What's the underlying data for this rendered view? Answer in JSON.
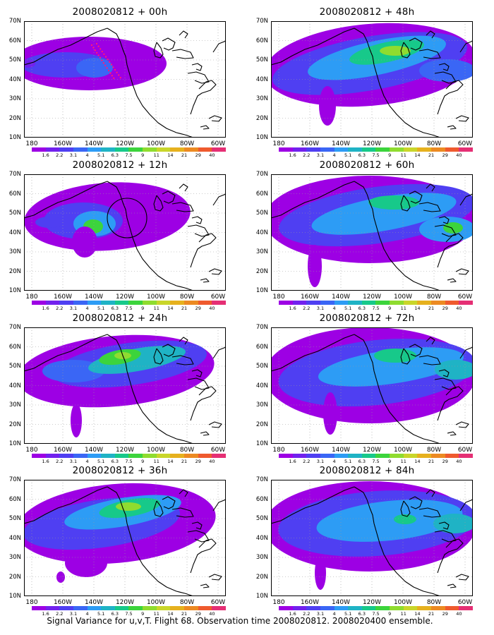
{
  "caption": "Signal Variance for u,v,T. Flight 68. Observation time 2008020812. 2008020400 ensemble.",
  "y_ticks": [
    "70N",
    "60N",
    "50N",
    "40N",
    "30N",
    "20N",
    "10N"
  ],
  "x_ticks": [
    "180",
    "160W",
    "140W",
    "120W",
    "100W",
    "80W",
    "60W"
  ],
  "colorbar": {
    "levels": [
      "1.6",
      "2.2",
      "3.1",
      "4",
      "5.1",
      "6.3",
      "7.5",
      "9",
      "11",
      "14",
      "21",
      "29",
      "40"
    ],
    "colors": [
      "#9d00e4",
      "#7221ee",
      "#4f3ff2",
      "#3a66f5",
      "#2d9cf5",
      "#1fb3c5",
      "#17c98a",
      "#3cd43c",
      "#8fdc2f",
      "#c9d62a",
      "#e6b11e",
      "#ec8a22",
      "#ef5a2e",
      "#e52f74"
    ]
  },
  "chart_data": [
    {
      "type": "heatmap",
      "title": "2008020812 + 00h",
      "lon_range": [
        "180",
        "60W"
      ],
      "lat_range": [
        "10N",
        "70N"
      ],
      "features": {
        "flight_track": true,
        "circle": false
      }
    },
    {
      "type": "heatmap",
      "title": "2008020812 + 12h",
      "lon_range": [
        "180",
        "60W"
      ],
      "lat_range": [
        "10N",
        "70N"
      ],
      "features": {
        "flight_track": false,
        "circle": true
      }
    },
    {
      "type": "heatmap",
      "title": "2008020812 + 24h",
      "lon_range": [
        "180",
        "60W"
      ],
      "lat_range": [
        "10N",
        "70N"
      ],
      "features": {
        "flight_track": false,
        "circle": false
      }
    },
    {
      "type": "heatmap",
      "title": "2008020812 + 36h",
      "lon_range": [
        "180",
        "60W"
      ],
      "lat_range": [
        "10N",
        "70N"
      ],
      "features": {
        "flight_track": false,
        "circle": false
      }
    },
    {
      "type": "heatmap",
      "title": "2008020812 + 48h",
      "lon_range": [
        "180",
        "60W"
      ],
      "lat_range": [
        "10N",
        "70N"
      ],
      "features": {
        "flight_track": false,
        "circle": false
      }
    },
    {
      "type": "heatmap",
      "title": "2008020812 + 60h",
      "lon_range": [
        "180",
        "60W"
      ],
      "lat_range": [
        "10N",
        "70N"
      ],
      "features": {
        "flight_track": false,
        "circle": false
      }
    },
    {
      "type": "heatmap",
      "title": "2008020812 + 72h",
      "lon_range": [
        "180",
        "60W"
      ],
      "lat_range": [
        "10N",
        "70N"
      ],
      "features": {
        "flight_track": false,
        "circle": false
      }
    },
    {
      "type": "heatmap",
      "title": "2008020812 + 84h",
      "lon_range": [
        "180",
        "60W"
      ],
      "lat_range": [
        "10N",
        "70N"
      ],
      "features": {
        "flight_track": false,
        "circle": false
      }
    }
  ]
}
